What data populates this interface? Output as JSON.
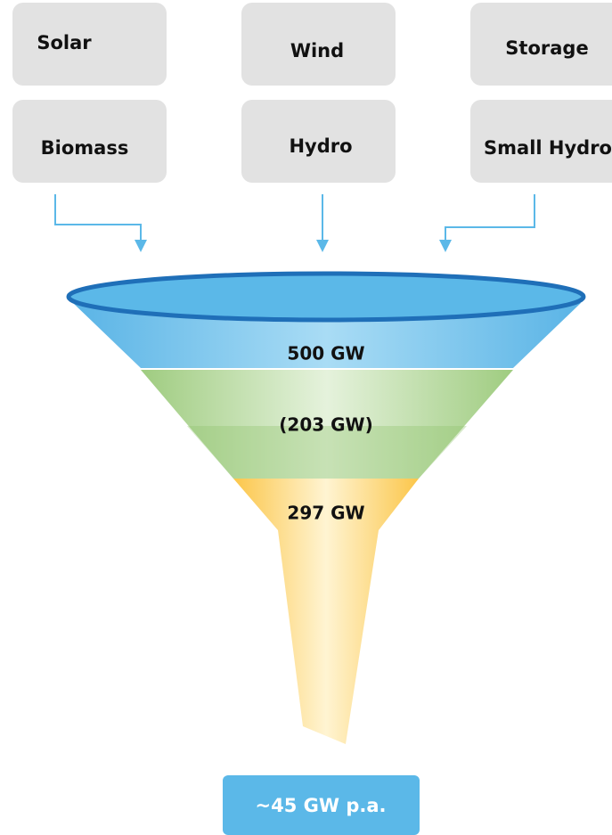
{
  "sources": [
    "Solar",
    "Wind",
    "Storage",
    "Biomass",
    "Hydro",
    "Small Hydro"
  ],
  "funnel": {
    "stages": [
      "500 GW",
      "(203 GW)",
      "297 GW"
    ]
  },
  "output": "~45 GW p.a."
}
